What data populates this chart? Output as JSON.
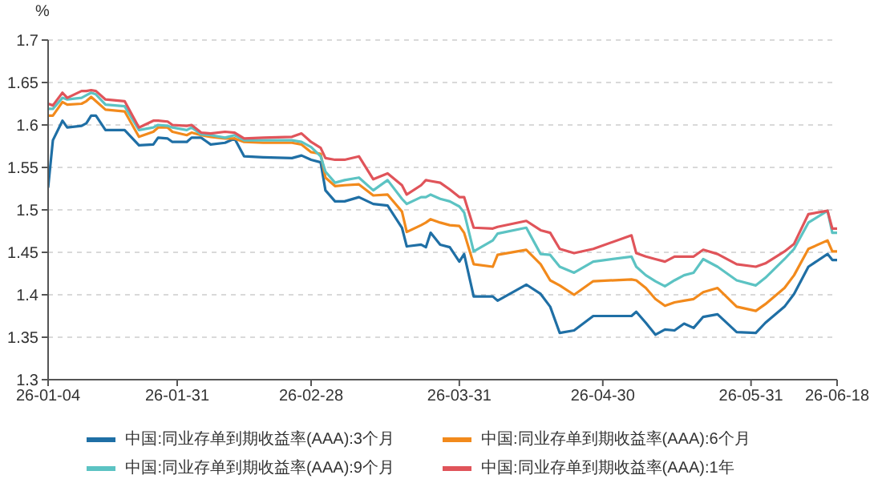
{
  "chart_data": {
    "type": "line",
    "ylabel": "%",
    "ylim": [
      1.3,
      1.7
    ],
    "yticks": [
      1.3,
      1.35,
      1.4,
      1.45,
      1.5,
      1.55,
      1.6,
      1.65,
      1.7
    ],
    "xlim": [
      "--01-04",
      "--06-18"
    ],
    "xticks": [
      {
        "value": "--01-04",
        "label": "26-01-04"
      },
      {
        "value": "--01-31",
        "label": "26-01-31"
      },
      {
        "value": "--02-28",
        "label": "26-02-28"
      },
      {
        "value": "--03-31",
        "label": "26-03-31"
      },
      {
        "value": "--04-30",
        "label": "26-04-30"
      },
      {
        "value": "--05-31",
        "label": "26-05-31"
      },
      {
        "value": "--06-18",
        "label": "26-06-18"
      }
    ],
    "grid": "y",
    "legend": "bottom",
    "marker": "none",
    "line_style": "solid",
    "x": [
      "--01-04",
      "--01-05",
      "--01-07",
      "--01-08",
      "--01-11",
      "--01-12",
      "--01-13",
      "--01-14",
      "--01-16",
      "--01-20",
      "--01-23",
      "--01-26",
      "--01-27",
      "--01-29",
      "--01-30",
      "--02-02",
      "--02-03",
      "--02-05",
      "--02-07",
      "--02-10",
      "--02-12",
      "--02-14",
      "--02-18",
      "--02-24",
      "--02-26",
      "--02-28",
      "--03-02",
      "--03-03",
      "--03-05",
      "--03-07",
      "--03-10",
      "--03-13",
      "--03-16",
      "--03-19",
      "--03-20",
      "--03-23",
      "--03-24",
      "--03-25",
      "--03-27",
      "--03-29",
      "--03-31",
      "--04-01",
      "--04-03",
      "--04-07",
      "--04-08",
      "--04-14",
      "--04-17",
      "--04-19",
      "--04-21",
      "--04-24",
      "--04-28",
      "--05-06",
      "--05-07",
      "--05-09",
      "--05-11",
      "--05-13",
      "--05-15",
      "--05-17",
      "--05-19",
      "--05-21",
      "--05-24",
      "--05-28",
      "--06-01",
      "--06-03",
      "--06-07",
      "--06-09",
      "--06-12",
      "--06-16",
      "--06-17",
      "--06-18"
    ],
    "series": [
      {
        "name": "中国:同业存单到期收益率(AAA):3个月",
        "color": "#1f6fa5",
        "values": [
          1.526,
          1.582,
          1.605,
          1.597,
          1.599,
          1.602,
          1.611,
          1.611,
          1.594,
          1.594,
          1.576,
          1.577,
          1.585,
          1.584,
          1.58,
          1.58,
          1.585,
          1.585,
          1.577,
          1.579,
          1.584,
          1.563,
          1.562,
          1.561,
          1.564,
          1.559,
          1.556,
          1.523,
          1.51,
          1.51,
          1.515,
          1.507,
          1.505,
          1.479,
          1.457,
          1.459,
          1.456,
          1.473,
          1.459,
          1.456,
          1.439,
          1.448,
          1.398,
          1.398,
          1.393,
          1.412,
          1.401,
          1.386,
          1.355,
          1.358,
          1.375,
          1.375,
          1.38,
          1.367,
          1.353,
          1.359,
          1.358,
          1.366,
          1.361,
          1.374,
          1.377,
          1.356,
          1.355,
          1.367,
          1.386,
          1.401,
          1.433,
          1.448,
          1.441,
          1.441
        ]
      },
      {
        "name": "中国:同业存单到期收益率(AAA):6个月",
        "color": "#f28a1c",
        "values": [
          1.611,
          1.611,
          1.627,
          1.624,
          1.625,
          1.628,
          1.633,
          1.628,
          1.618,
          1.616,
          1.586,
          1.592,
          1.597,
          1.597,
          1.592,
          1.588,
          1.591,
          1.588,
          1.586,
          1.584,
          1.584,
          1.58,
          1.579,
          1.579,
          1.577,
          1.568,
          1.566,
          1.538,
          1.528,
          1.529,
          1.53,
          1.517,
          1.518,
          1.498,
          1.474,
          1.482,
          1.485,
          1.489,
          1.485,
          1.482,
          1.481,
          1.473,
          1.436,
          1.433,
          1.447,
          1.453,
          1.436,
          1.417,
          1.411,
          1.4,
          1.416,
          1.418,
          1.417,
          1.408,
          1.395,
          1.387,
          1.391,
          1.393,
          1.395,
          1.403,
          1.408,
          1.386,
          1.381,
          1.389,
          1.408,
          1.423,
          1.454,
          1.464,
          1.451,
          1.451
        ]
      },
      {
        "name": "中国:同业存单到期收益率(AAA):9个月",
        "color": "#5cc3c3",
        "values": [
          1.619,
          1.619,
          1.632,
          1.63,
          1.632,
          1.635,
          1.638,
          1.636,
          1.624,
          1.622,
          1.594,
          1.597,
          1.6,
          1.599,
          1.597,
          1.594,
          1.597,
          1.589,
          1.588,
          1.585,
          1.588,
          1.582,
          1.582,
          1.582,
          1.58,
          1.574,
          1.563,
          1.545,
          1.532,
          1.535,
          1.538,
          1.523,
          1.535,
          1.513,
          1.507,
          1.515,
          1.515,
          1.518,
          1.513,
          1.51,
          1.504,
          1.497,
          1.451,
          1.464,
          1.472,
          1.479,
          1.448,
          1.447,
          1.433,
          1.426,
          1.439,
          1.445,
          1.433,
          1.423,
          1.416,
          1.41,
          1.417,
          1.423,
          1.426,
          1.442,
          1.433,
          1.417,
          1.411,
          1.42,
          1.442,
          1.454,
          1.485,
          1.499,
          1.473,
          1.473
        ]
      },
      {
        "name": "中国:同业存单到期收益率(AAA):1年",
        "color": "#e0545a",
        "values": [
          1.625,
          1.623,
          1.638,
          1.632,
          1.64,
          1.64,
          1.641,
          1.64,
          1.63,
          1.628,
          1.597,
          1.605,
          1.605,
          1.604,
          1.6,
          1.599,
          1.6,
          1.591,
          1.59,
          1.592,
          1.591,
          1.584,
          1.585,
          1.586,
          1.59,
          1.58,
          1.573,
          1.561,
          1.559,
          1.559,
          1.563,
          1.536,
          1.543,
          1.529,
          1.518,
          1.529,
          1.535,
          1.534,
          1.532,
          1.524,
          1.515,
          1.515,
          1.479,
          1.478,
          1.48,
          1.487,
          1.476,
          1.473,
          1.454,
          1.449,
          1.454,
          1.47,
          1.449,
          1.445,
          1.442,
          1.439,
          1.445,
          1.445,
          1.445,
          1.453,
          1.448,
          1.436,
          1.433,
          1.437,
          1.451,
          1.46,
          1.495,
          1.499,
          1.478,
          1.478
        ]
      }
    ]
  }
}
